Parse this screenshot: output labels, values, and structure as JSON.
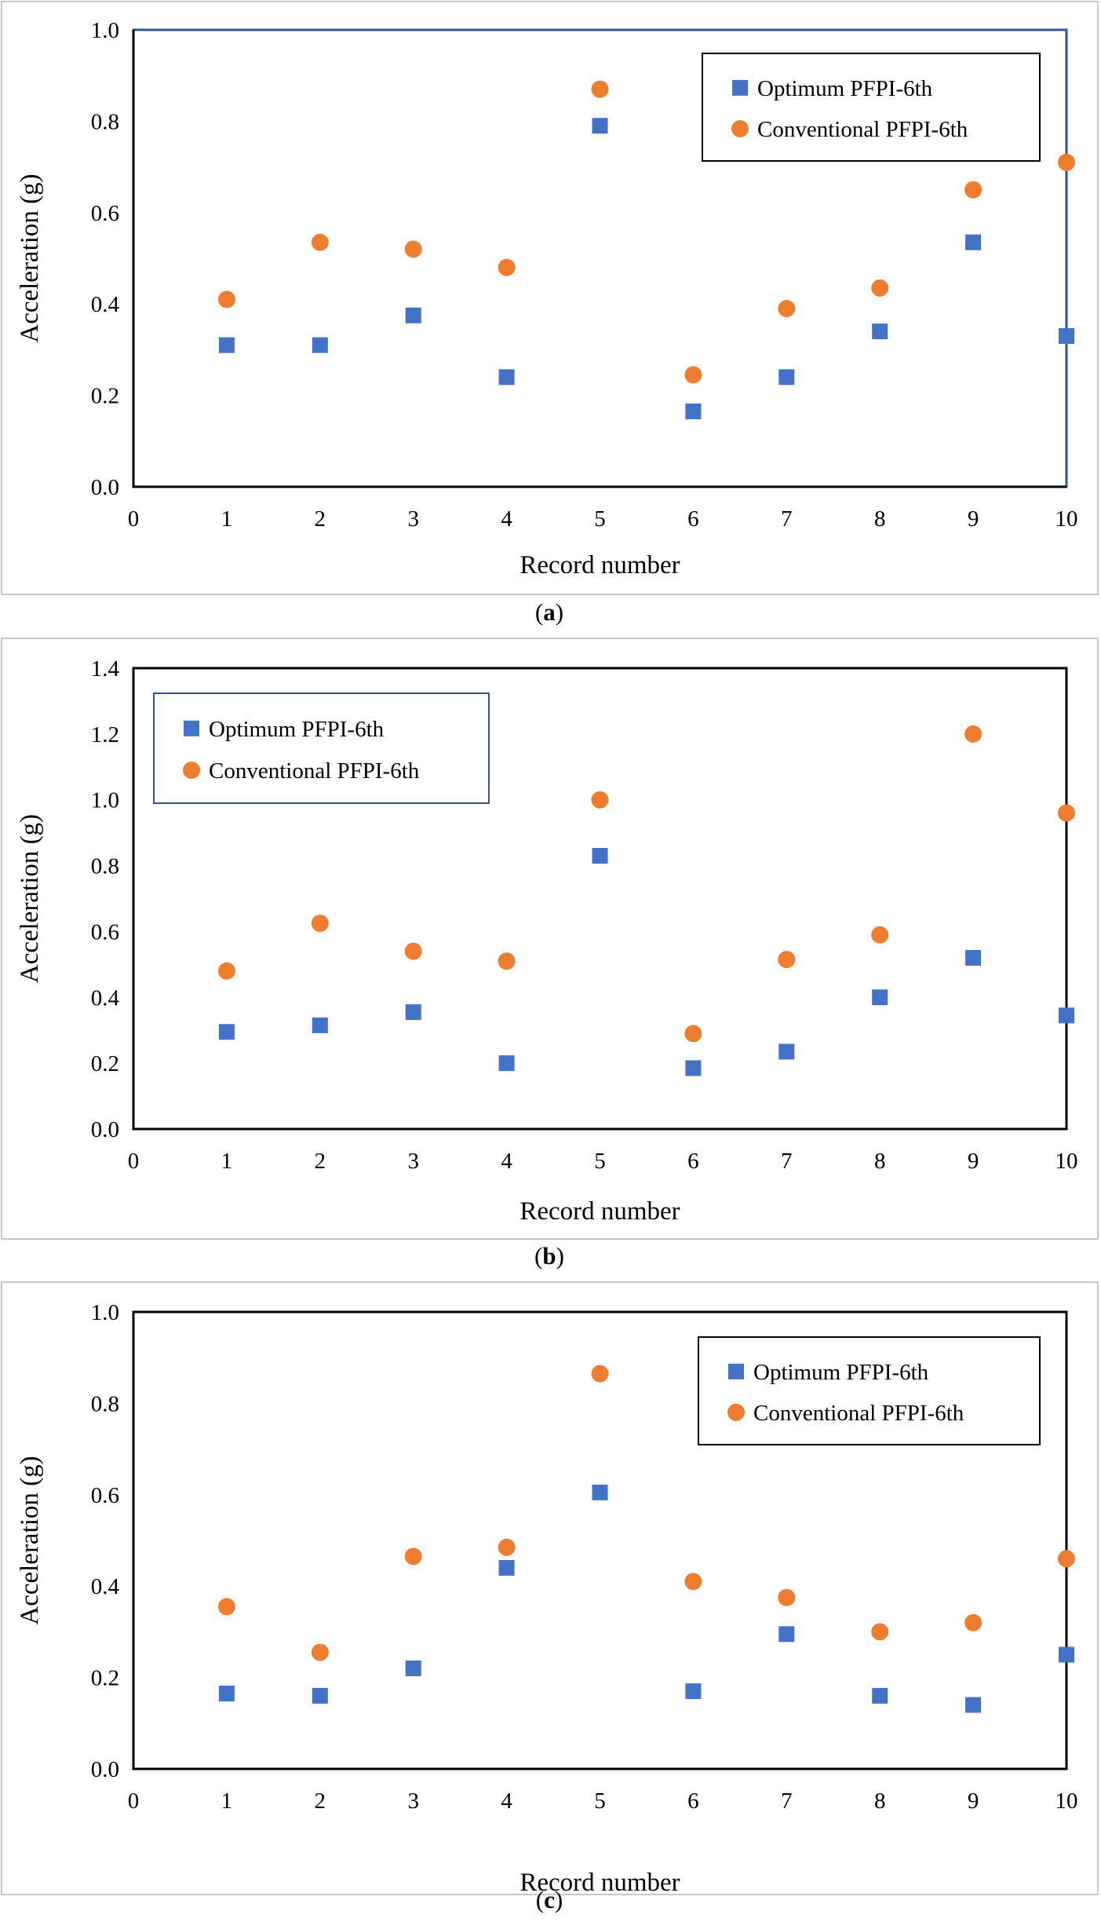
{
  "panels": [
    {
      "caption": "a",
      "legend": {
        "placement": "top-right",
        "square_label": "Optimum PFPI-6th",
        "circle_label": "Conventional PFPI-6th"
      }
    },
    {
      "caption": "b",
      "legend": {
        "placement": "top-left",
        "square_label": "Optimum PFPI-6th",
        "circle_label": "Conventional PFPI-6th"
      }
    },
    {
      "caption": "c",
      "legend": {
        "placement": "top-right",
        "square_label": "Optimum PFPI-6th",
        "circle_label": "Conventional PFPI-6th"
      }
    }
  ],
  "colors": {
    "optimum": "#4472C4",
    "conventional": "#ED7D31",
    "panel_a_frame": "#2F5597",
    "axis": "#000000",
    "outer_border": "#c8c8c8"
  },
  "chart_data": [
    {
      "type": "scatter",
      "title": "",
      "caption": "a",
      "xlabel": "Record number",
      "ylabel": "Acceleration (g)",
      "xlim": [
        0,
        10
      ],
      "ylim": [
        0,
        1.0
      ],
      "xticks": [
        0,
        1,
        2,
        3,
        4,
        5,
        6,
        7,
        8,
        9,
        10
      ],
      "yticks": [
        0.0,
        0.2,
        0.4,
        0.6,
        0.8,
        1.0
      ],
      "ytick_labels": [
        "0.0",
        "0.2",
        "0.4",
        "0.6",
        "0.8",
        "1.0"
      ],
      "grid": false,
      "legend_placement": "top-right",
      "series": [
        {
          "name": "Optimum PFPI-6th",
          "marker": "square",
          "x": [
            1,
            2,
            3,
            4,
            5,
            6,
            7,
            8,
            9,
            10
          ],
          "values": [
            0.31,
            0.31,
            0.375,
            0.24,
            0.79,
            0.165,
            0.24,
            0.34,
            0.535,
            0.33
          ]
        },
        {
          "name": "Conventional PFPI-6th",
          "marker": "circle",
          "x": [
            1,
            2,
            3,
            4,
            5,
            6,
            7,
            8,
            9,
            10
          ],
          "values": [
            0.41,
            0.535,
            0.52,
            0.48,
            0.87,
            0.245,
            0.39,
            0.435,
            0.65,
            0.71
          ]
        }
      ]
    },
    {
      "type": "scatter",
      "title": "",
      "caption": "b",
      "xlabel": "Record number",
      "ylabel": "Acceleration (g)",
      "xlim": [
        0,
        10
      ],
      "ylim": [
        0,
        1.4
      ],
      "xticks": [
        0,
        1,
        2,
        3,
        4,
        5,
        6,
        7,
        8,
        9,
        10
      ],
      "yticks": [
        0.0,
        0.2,
        0.4,
        0.6,
        0.8,
        1.0,
        1.2,
        1.4
      ],
      "ytick_labels": [
        "0.0",
        "0.2",
        "0.4",
        "0.6",
        "0.8",
        "1.0",
        "1.2",
        "1.4"
      ],
      "grid": false,
      "legend_placement": "top-left",
      "series": [
        {
          "name": "Optimum PFPI-6th",
          "marker": "square",
          "x": [
            1,
            2,
            3,
            4,
            5,
            6,
            7,
            8,
            9,
            10
          ],
          "values": [
            0.295,
            0.315,
            0.355,
            0.2,
            0.83,
            0.185,
            0.235,
            0.4,
            0.52,
            0.345
          ]
        },
        {
          "name": "Conventional PFPI-6th",
          "marker": "circle",
          "x": [
            1,
            2,
            3,
            4,
            5,
            6,
            7,
            8,
            9,
            10
          ],
          "values": [
            0.48,
            0.625,
            0.54,
            0.51,
            1.0,
            0.29,
            0.515,
            0.59,
            1.2,
            0.96
          ]
        }
      ]
    },
    {
      "type": "scatter",
      "title": "",
      "caption": "c",
      "xlabel": "Record number",
      "ylabel": "Acceleration (g)",
      "xlim": [
        0,
        10
      ],
      "ylim": [
        0,
        1.0
      ],
      "xticks": [
        0,
        1,
        2,
        3,
        4,
        5,
        6,
        7,
        8,
        9,
        10
      ],
      "yticks": [
        0.0,
        0.2,
        0.4,
        0.6,
        0.8,
        1.0
      ],
      "ytick_labels": [
        "0.0",
        "0.2",
        "0.4",
        "0.6",
        "0.8",
        "1.0"
      ],
      "grid": false,
      "legend_placement": "top-right",
      "series": [
        {
          "name": "Optimum PFPI-6th",
          "marker": "square",
          "x": [
            1,
            2,
            3,
            4,
            5,
            6,
            7,
            8,
            9,
            10
          ],
          "values": [
            0.165,
            0.16,
            0.22,
            0.44,
            0.605,
            0.17,
            0.295,
            0.16,
            0.14,
            0.25
          ]
        },
        {
          "name": "Conventional PFPI-6th",
          "marker": "circle",
          "x": [
            1,
            2,
            3,
            4,
            5,
            6,
            7,
            8,
            9,
            10
          ],
          "values": [
            0.355,
            0.255,
            0.465,
            0.485,
            0.865,
            0.41,
            0.375,
            0.3,
            0.32,
            0.46
          ]
        }
      ]
    }
  ]
}
